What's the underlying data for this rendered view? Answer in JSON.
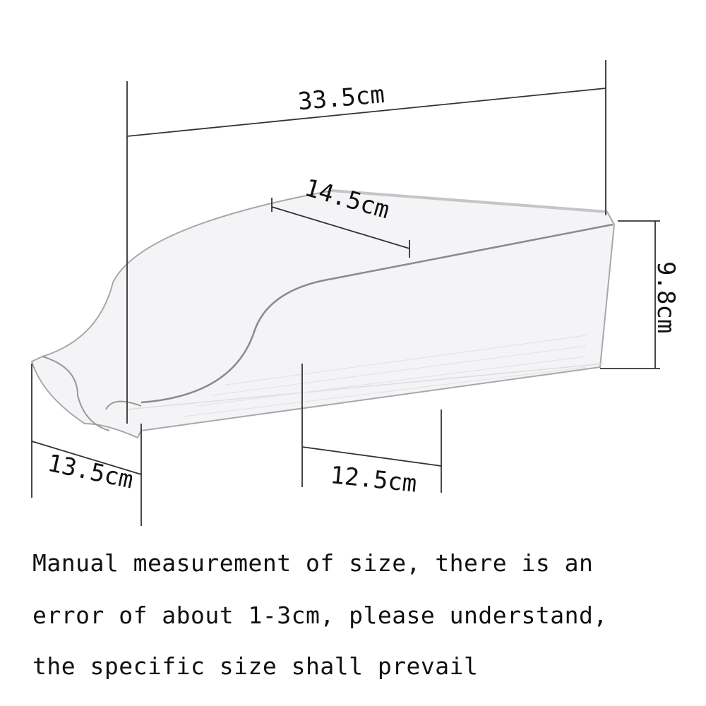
{
  "dimensions": {
    "length": "33.5cm",
    "top_depth": "14.5cm",
    "height": "9.8cm",
    "front_width": "13.5cm",
    "bottom_depth": "12.5cm"
  },
  "note_lines": [
    "Manual measurement of size, there is an",
    "error of about 1-3cm, please understand,",
    "the specific size shall prevail"
  ],
  "colors": {
    "line": "#333333",
    "bin_edge": "#9a9a9a",
    "bin_fill": "#f3f3f5"
  }
}
